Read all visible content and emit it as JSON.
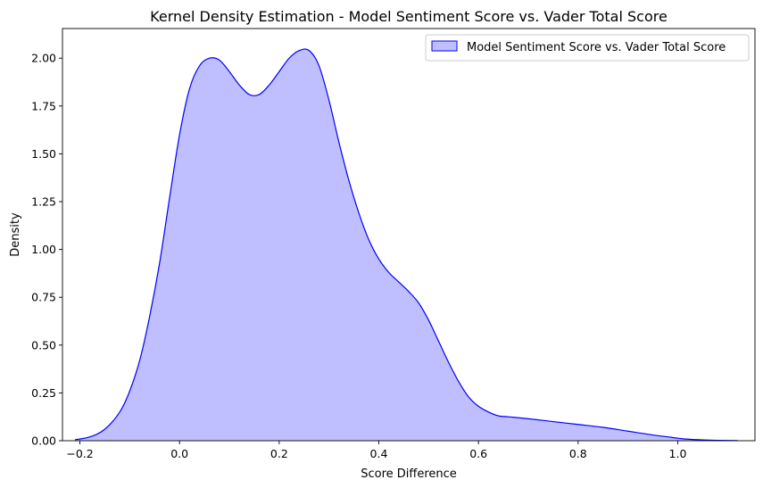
{
  "chart_data": {
    "type": "area",
    "title": "Kernel Density Estimation - Model Sentiment Score vs. Vader Total Score",
    "xlabel": "Score Difference",
    "ylabel": "Density",
    "xlim": [
      -0.235,
      1.155
    ],
    "ylim": [
      0,
      2.155
    ],
    "x_ticks": [
      -0.2,
      0.0,
      0.2,
      0.4,
      0.6,
      0.8,
      1.0
    ],
    "x_tick_labels": [
      "−0.2",
      "0.0",
      "0.2",
      "0.4",
      "0.6",
      "0.8",
      "1.0"
    ],
    "y_ticks": [
      0.0,
      0.25,
      0.5,
      0.75,
      1.0,
      1.25,
      1.5,
      1.75,
      2.0
    ],
    "y_tick_labels": [
      "0.00",
      "0.25",
      "0.50",
      "0.75",
      "1.00",
      "1.25",
      "1.50",
      "1.75",
      "2.00"
    ],
    "grid": false,
    "legend_position": "upper-right",
    "series": [
      {
        "name": "Model Sentiment Score vs. Vader Total Score",
        "line_color": "#0000ff",
        "fill_color": "#bfbfff",
        "x": [
          -0.21,
          -0.18,
          -0.15,
          -0.12,
          -0.1,
          -0.08,
          -0.06,
          -0.04,
          -0.02,
          0.0,
          0.02,
          0.04,
          0.06,
          0.08,
          0.1,
          0.12,
          0.14,
          0.16,
          0.18,
          0.2,
          0.22,
          0.24,
          0.26,
          0.28,
          0.3,
          0.32,
          0.34,
          0.36,
          0.38,
          0.4,
          0.42,
          0.44,
          0.46,
          0.48,
          0.5,
          0.52,
          0.54,
          0.56,
          0.58,
          0.6,
          0.62,
          0.64,
          0.66,
          0.7,
          0.75,
          0.8,
          0.85,
          0.9,
          0.95,
          0.98,
          1.0,
          1.02,
          1.05,
          1.08,
          1.12
        ],
        "y": [
          0.005,
          0.02,
          0.06,
          0.15,
          0.26,
          0.42,
          0.65,
          0.93,
          1.27,
          1.6,
          1.84,
          1.96,
          2.0,
          1.99,
          1.93,
          1.86,
          1.81,
          1.81,
          1.86,
          1.93,
          2.0,
          2.04,
          2.04,
          1.96,
          1.78,
          1.56,
          1.36,
          1.19,
          1.05,
          0.95,
          0.88,
          0.83,
          0.78,
          0.72,
          0.63,
          0.52,
          0.41,
          0.31,
          0.23,
          0.18,
          0.15,
          0.13,
          0.125,
          0.115,
          0.1,
          0.085,
          0.07,
          0.05,
          0.03,
          0.02,
          0.013,
          0.008,
          0.004,
          0.002,
          0.001
        ]
      }
    ]
  }
}
